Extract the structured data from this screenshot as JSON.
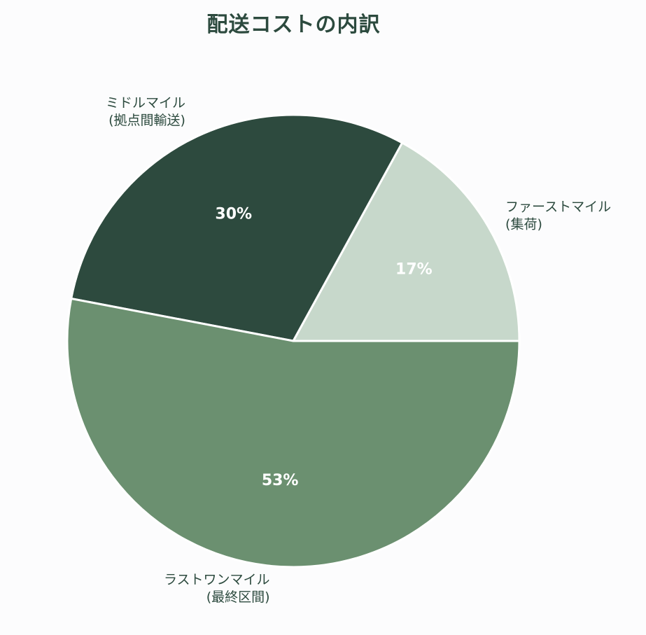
{
  "chart_data": {
    "type": "pie",
    "title": "配送コストの内訳",
    "categories": [
      "ファーストマイル\n(集荷)",
      "ミドルマイル\n(拠点間輸送)",
      "ラストワンマイル\n(最終区間)"
    ],
    "values": [
      17,
      30,
      53
    ],
    "value_labels": [
      "17%",
      "30%",
      "53%"
    ],
    "colors": [
      "#c7d8cb",
      "#2d4a3e",
      "#6b9070"
    ],
    "start_angle": "0° (3 o'clock), counter-clockwise",
    "legend": "none"
  }
}
